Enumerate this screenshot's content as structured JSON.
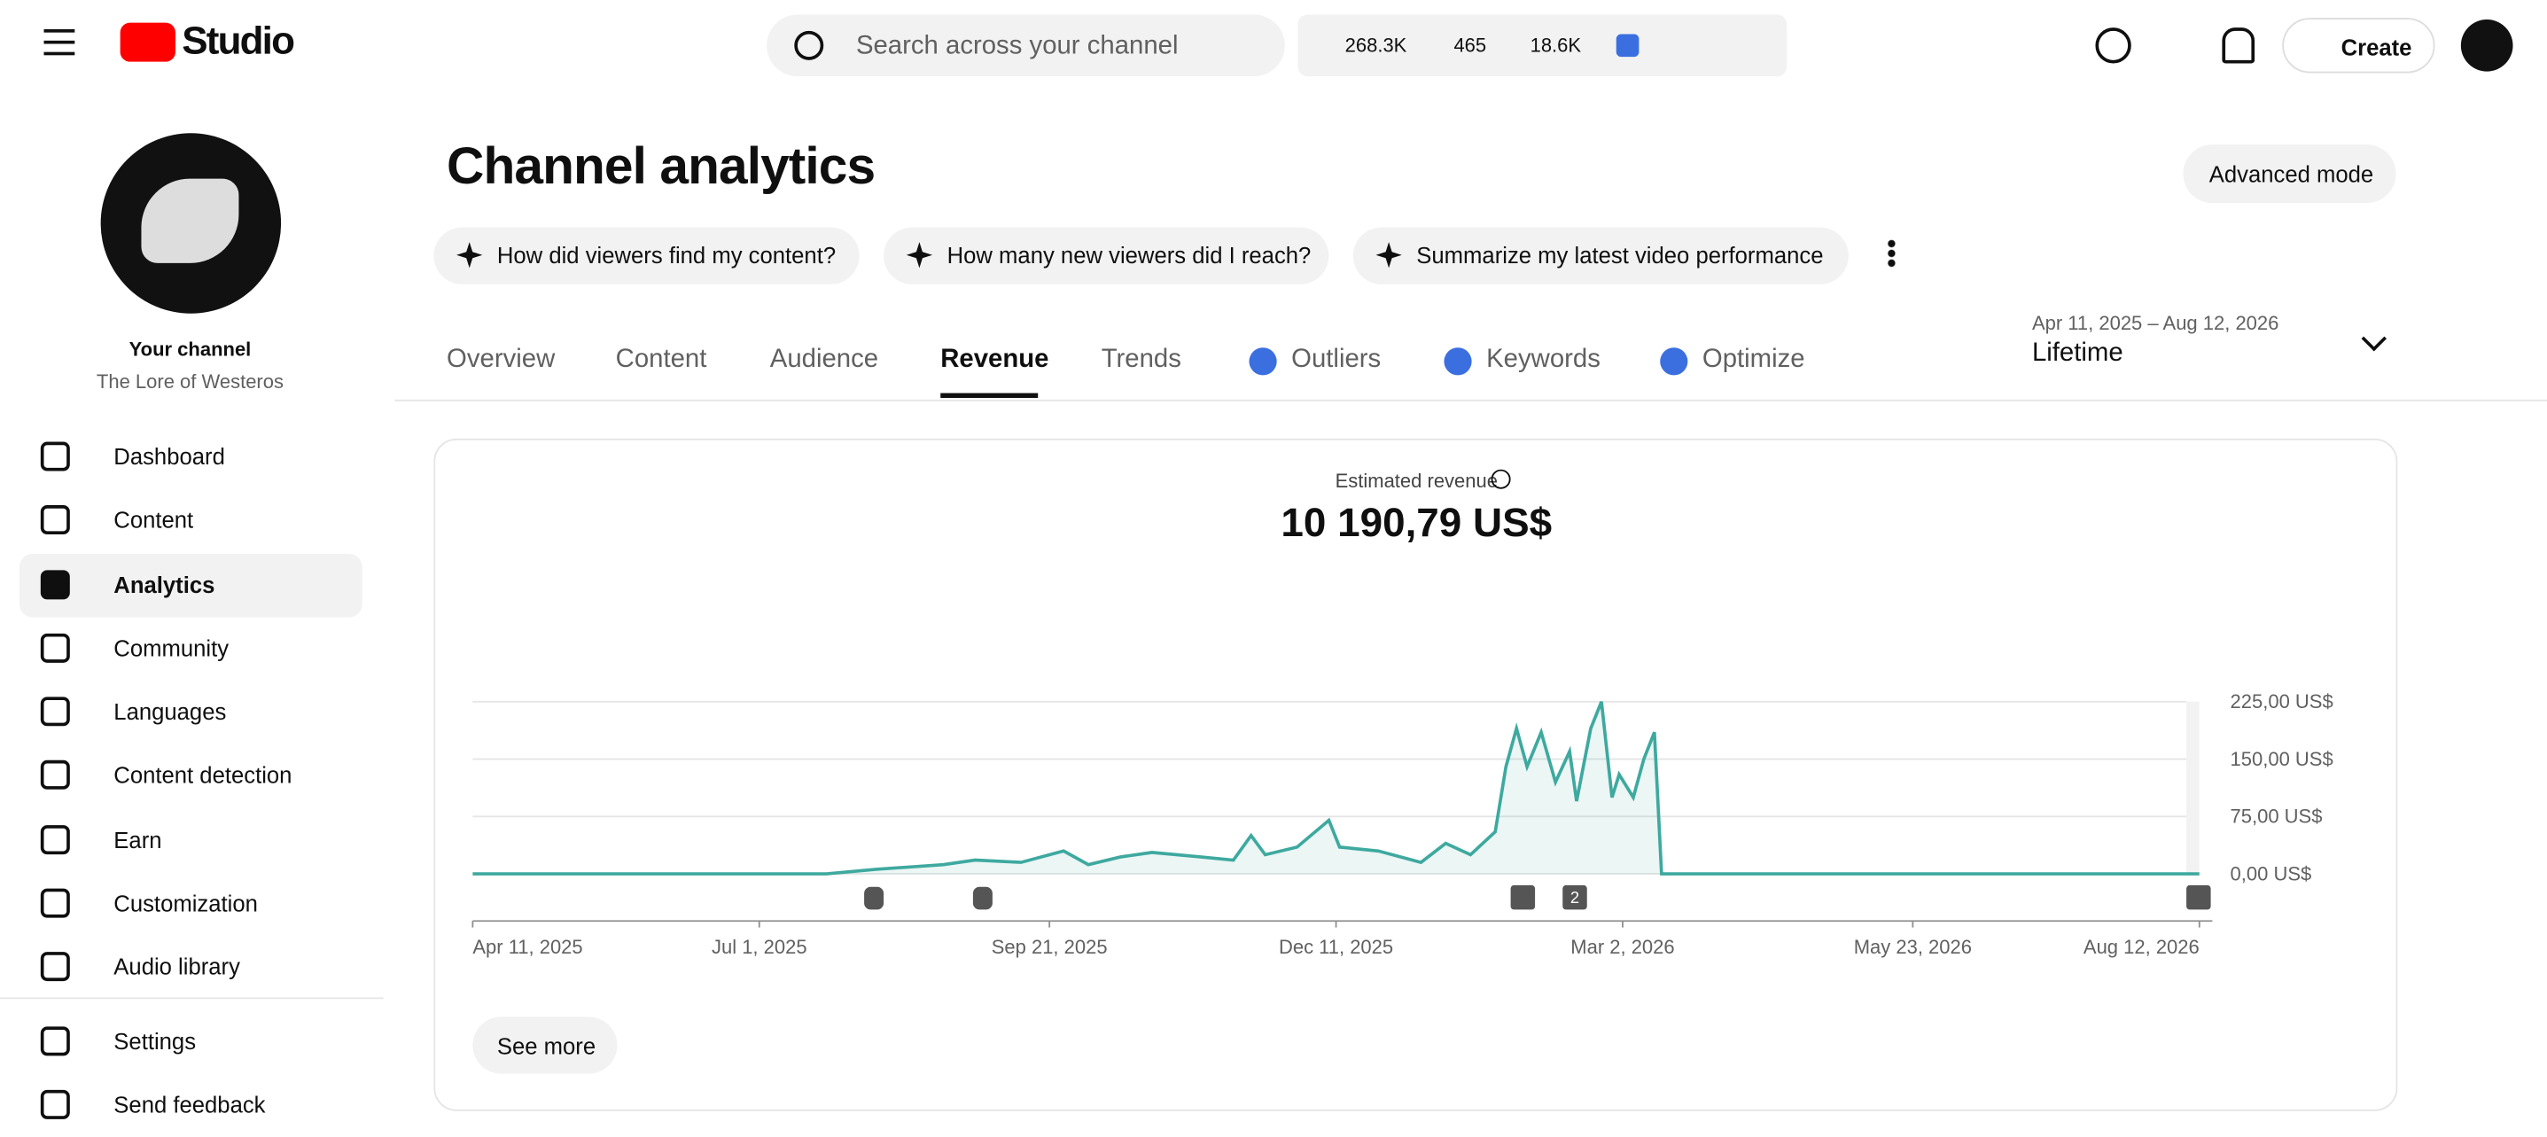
{
  "header": {
    "logo": "Studio",
    "search_placeholder": "Search across your channel",
    "stats": [
      "268.3K",
      "465",
      "18.6K"
    ],
    "create": "Create"
  },
  "sidebar": {
    "channel_label": "Your channel",
    "channel_name": "The Lore of Westeros",
    "nav": [
      "Dashboard",
      "Content",
      "Analytics",
      "Community",
      "Languages",
      "Content detection",
      "Earn",
      "Customization",
      "Audio library"
    ],
    "footer": [
      "Settings",
      "Send feedback"
    ]
  },
  "main": {
    "title": "Channel analytics",
    "advanced_mode": "Advanced mode",
    "prompts": [
      "How did viewers find my content?",
      "How many new viewers did I reach?",
      "Summarize my latest video performance"
    ],
    "tabs": [
      "Overview",
      "Content",
      "Audience",
      "Revenue",
      "Trends",
      "Outliers",
      "Keywords",
      "Optimize"
    ],
    "date_range": "Apr 11, 2025 – Aug 12, 2026",
    "period": "Lifetime",
    "metric_label": "Estimated revenue",
    "metric_value": "10 190,79 US$",
    "see_more": "See more",
    "marker_count": "2"
  },
  "chart": {
    "type": "line",
    "color": "#3ea99f",
    "x": [
      "2025-04-11",
      "2025-07-20",
      "2025-08-03",
      "2025-08-22",
      "2025-08-31",
      "2025-09-13",
      "2025-09-25",
      "2025-10-02",
      "2025-10-11",
      "2025-10-20",
      "2025-11-03",
      "2025-11-12",
      "2025-11-17",
      "2025-11-21",
      "2025-11-30",
      "2025-12-09",
      "2025-12-12",
      "2025-12-23",
      "2026-01-04",
      "2026-01-11",
      "2026-01-18",
      "2026-01-25",
      "2026-01-28",
      "2026-01-31",
      "2026-02-03",
      "2026-02-07",
      "2026-02-11",
      "2026-02-15",
      "2026-02-17",
      "2026-02-21",
      "2026-02-24",
      "2026-02-27",
      "2026-03-01",
      "2026-03-05",
      "2026-03-08",
      "2026-03-11",
      "2026-03-13",
      "2026-08-12"
    ],
    "values": [
      0,
      0,
      6,
      12,
      18,
      15,
      30,
      12,
      22,
      28,
      22,
      18,
      50,
      25,
      35,
      70,
      35,
      30,
      15,
      40,
      25,
      55,
      140,
      190,
      140,
      185,
      120,
      160,
      95,
      190,
      225,
      100,
      130,
      100,
      150,
      185,
      0,
      0
    ],
    "xlim": [
      "2025-04-11",
      "2026-08-12"
    ],
    "xticks": [
      {
        "value": "2025-04-11",
        "label": "Apr 11, 2025"
      },
      {
        "value": "2025-07-01",
        "label": "Jul 1, 2025"
      },
      {
        "value": "2025-09-21",
        "label": "Sep 21, 2025"
      },
      {
        "value": "2025-12-11",
        "label": "Dec 11, 2025"
      },
      {
        "value": "2026-03-02",
        "label": "Mar 2, 2026"
      },
      {
        "value": "2026-05-23",
        "label": "May 23, 2026"
      },
      {
        "value": "2026-08-12",
        "label": "Aug 12, 2026"
      }
    ],
    "ylim": [
      0,
      225
    ],
    "yticks": [
      {
        "value": 0,
        "label": "0,00 US$"
      },
      {
        "value": 75,
        "label": "75,00 US$"
      },
      {
        "value": 150,
        "label": "150,00 US$"
      },
      {
        "value": 225,
        "label": "225,00 US$"
      }
    ],
    "grid": true
  }
}
